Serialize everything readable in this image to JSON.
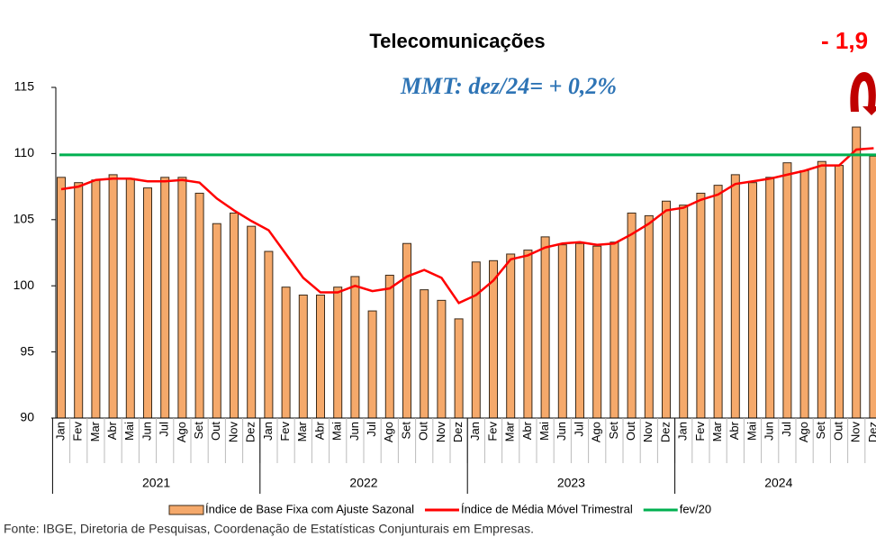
{
  "chart_data": {
    "type": "bar",
    "title": "Telecomunicações",
    "subtitle": "MMT: dez/24=   + 0,2%",
    "annotation": "- 1,9",
    "source": "Fonte: IBGE, Diretoria de Pesquisas, Coordenação de Estatísticas Conjunturais em Empresas.",
    "categories": [
      "Jan",
      "Fev",
      "Mar",
      "Abr",
      "Mai",
      "Jun",
      "Jul",
      "Ago",
      "Set",
      "Out",
      "Nov",
      "Dez",
      "Jan",
      "Fev",
      "Mar",
      "Abr",
      "Mai",
      "Jun",
      "Jul",
      "Ago",
      "Set",
      "Out",
      "Nov",
      "Dez",
      "Jan",
      "Fev",
      "Mar",
      "Abr",
      "Mai",
      "Jun",
      "Jul",
      "Ago",
      "Set",
      "Out",
      "Nov",
      "Dez",
      "Jan",
      "Fev",
      "Mar",
      "Abr",
      "Mai",
      "Jun",
      "Jul",
      "Ago",
      "Set",
      "Out",
      "Nov",
      "Dez"
    ],
    "year_groups": [
      "2021",
      "2022",
      "2023",
      "2024"
    ],
    "series": [
      {
        "name": "Índice de Base Fixa com Ajuste Sazonal",
        "type": "bar",
        "color": "#f5a96b",
        "values": [
          108.2,
          107.8,
          108.0,
          108.4,
          108.1,
          107.4,
          108.2,
          108.2,
          107.0,
          104.7,
          105.5,
          104.5,
          102.6,
          99.9,
          99.3,
          99.3,
          99.9,
          100.7,
          98.1,
          100.8,
          103.2,
          99.7,
          98.9,
          97.5,
          101.8,
          101.9,
          102.4,
          102.7,
          103.7,
          103.1,
          103.2,
          103.0,
          103.3,
          105.5,
          105.3,
          106.4,
          106.1,
          107.0,
          107.6,
          108.4,
          107.8,
          108.2,
          109.3,
          108.7,
          109.4,
          109.1,
          112.0,
          109.8
        ]
      },
      {
        "name": "Índice de Média Móvel Trimestral",
        "type": "line",
        "color": "#ff0000",
        "values": [
          107.3,
          107.5,
          108.0,
          108.1,
          108.1,
          107.9,
          107.9,
          108.0,
          107.8,
          106.6,
          105.7,
          104.9,
          104.2,
          102.4,
          100.6,
          99.5,
          99.5,
          100.0,
          99.6,
          99.8,
          100.7,
          101.2,
          100.6,
          98.7,
          99.3,
          100.4,
          102.0,
          102.3,
          102.9,
          103.2,
          103.3,
          103.1,
          103.2,
          103.9,
          104.7,
          105.7,
          105.9,
          106.5,
          106.9,
          107.7,
          107.9,
          108.1,
          108.4,
          108.7,
          109.1,
          109.1,
          110.3,
          110.4
        ]
      },
      {
        "name": "fev/20",
        "type": "hline",
        "color": "#00b050",
        "value": 109.9
      }
    ],
    "ylim": [
      90,
      115
    ],
    "yticks": [
      90,
      95,
      100,
      105,
      110,
      115
    ]
  }
}
